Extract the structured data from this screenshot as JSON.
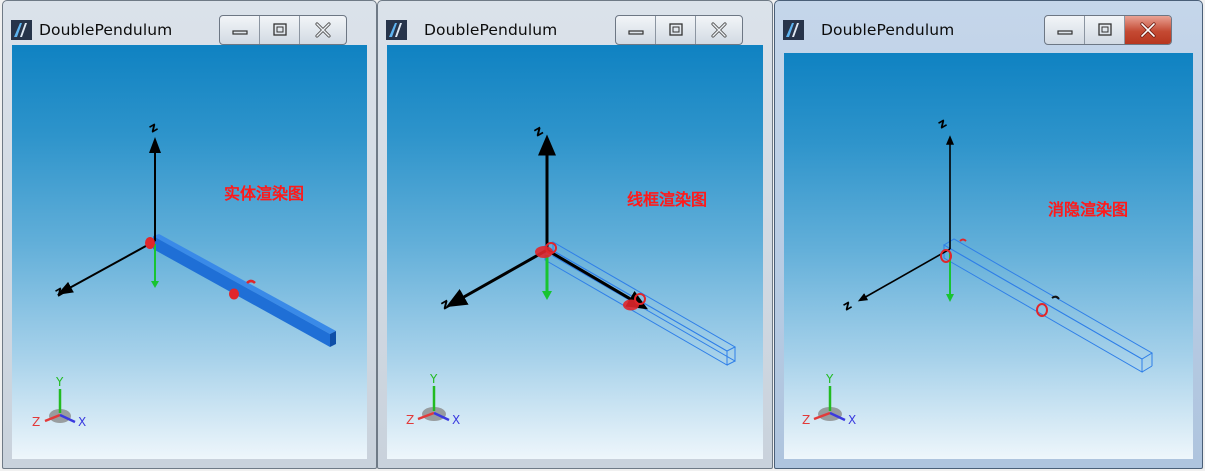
{
  "windows": [
    {
      "title": "DoublePendulum",
      "render_label": "实体渲染图",
      "state": "inactive"
    },
    {
      "title": "DoublePendulum",
      "render_label": "线框渲染图",
      "state": "inactive"
    },
    {
      "title": "DoublePendulum",
      "render_label": "消隐渲染图",
      "state": "active"
    }
  ],
  "triad_labels": {
    "y": "Y",
    "z": "Z",
    "x": "X"
  },
  "colors": {
    "label": "#ff1a1a",
    "model": "#1f6fd6",
    "joint": "#e0262b",
    "axis_green": "#18c431",
    "triad_y": "#22bb22",
    "triad_z": "#e23a3a",
    "triad_x": "#3a3adf"
  },
  "icons": [
    "app-icon",
    "minimize-icon",
    "maximize-icon",
    "close-icon"
  ]
}
